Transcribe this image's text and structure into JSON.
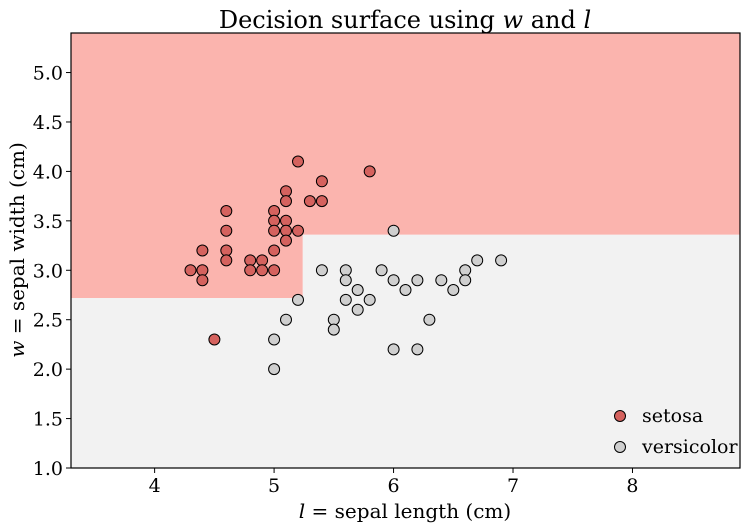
{
  "chart_data": {
    "type": "scatter",
    "title_prefix": "Decision surface using ",
    "title_var1": "w",
    "title_mid": " and ",
    "title_var2": "l",
    "xlabel_var": "l",
    "xlabel_rest": " = sepal length (cm)",
    "ylabel_var": "w",
    "ylabel_rest": " = sepal width (cm)",
    "xlim": [
      3.3,
      8.9
    ],
    "ylim": [
      1.0,
      5.4
    ],
    "xticks": [
      4,
      5,
      6,
      7,
      8
    ],
    "yticks": [
      1.0,
      1.5,
      2.0,
      2.5,
      3.0,
      3.5,
      4.0,
      4.5,
      5.0
    ],
    "xtick_labels": [
      "4",
      "5",
      "6",
      "7",
      "8"
    ],
    "ytick_labels": [
      "1.0",
      "1.5",
      "2.0",
      "2.5",
      "3.0",
      "3.5",
      "4.0",
      "4.5",
      "5.0"
    ],
    "grid": false,
    "legend_position": "bottom-right",
    "decision_regions": [
      {
        "class": "setosa",
        "color": "#fbb4ae",
        "polygon": [
          [
            3.3,
            5.4
          ],
          [
            8.9,
            5.4
          ],
          [
            8.9,
            3.36
          ],
          [
            5.24,
            3.36
          ],
          [
            5.24,
            2.72
          ],
          [
            3.3,
            2.72
          ]
        ]
      },
      {
        "class": "versicolor",
        "color": "#f2f2f2",
        "polygon": [
          [
            3.3,
            2.72
          ],
          [
            5.24,
            2.72
          ],
          [
            5.24,
            3.36
          ],
          [
            8.9,
            3.36
          ],
          [
            8.9,
            1.0
          ],
          [
            3.3,
            1.0
          ]
        ]
      }
    ],
    "series": [
      {
        "name": "setosa",
        "color": "#d5625e",
        "points": [
          [
            5.2,
            4.1
          ],
          [
            5.8,
            4.0
          ],
          [
            5.4,
            3.9
          ],
          [
            5.1,
            3.8
          ],
          [
            5.1,
            3.7
          ],
          [
            5.3,
            3.7
          ],
          [
            5.4,
            3.7
          ],
          [
            4.6,
            3.6
          ],
          [
            5.0,
            3.6
          ],
          [
            5.0,
            3.5
          ],
          [
            5.1,
            3.5
          ],
          [
            4.6,
            3.4
          ],
          [
            5.0,
            3.4
          ],
          [
            5.1,
            3.4
          ],
          [
            5.2,
            3.4
          ],
          [
            5.1,
            3.3
          ],
          [
            4.4,
            3.2
          ],
          [
            4.6,
            3.2
          ],
          [
            5.0,
            3.2
          ],
          [
            4.6,
            3.1
          ],
          [
            4.8,
            3.1
          ],
          [
            4.9,
            3.1
          ],
          [
            4.3,
            3.0
          ],
          [
            4.4,
            3.0
          ],
          [
            4.8,
            3.0
          ],
          [
            4.9,
            3.0
          ],
          [
            5.0,
            3.0
          ],
          [
            4.4,
            2.9
          ],
          [
            4.5,
            2.3
          ]
        ]
      },
      {
        "name": "versicolor",
        "color": "#cfcfcf",
        "points": [
          [
            6.0,
            3.4
          ],
          [
            5.4,
            3.0
          ],
          [
            5.6,
            3.0
          ],
          [
            5.9,
            3.0
          ],
          [
            6.6,
            3.0
          ],
          [
            6.7,
            3.1
          ],
          [
            6.9,
            3.1
          ],
          [
            5.6,
            2.9
          ],
          [
            6.0,
            2.9
          ],
          [
            6.2,
            2.9
          ],
          [
            6.4,
            2.9
          ],
          [
            6.6,
            2.9
          ],
          [
            5.7,
            2.8
          ],
          [
            6.1,
            2.8
          ],
          [
            6.5,
            2.8
          ],
          [
            5.2,
            2.7
          ],
          [
            5.6,
            2.7
          ],
          [
            5.8,
            2.7
          ],
          [
            5.7,
            2.6
          ],
          [
            5.1,
            2.5
          ],
          [
            5.5,
            2.5
          ],
          [
            6.3,
            2.5
          ],
          [
            5.5,
            2.4
          ],
          [
            5.0,
            2.3
          ],
          [
            6.0,
            2.2
          ],
          [
            6.2,
            2.2
          ],
          [
            5.0,
            2.0
          ]
        ]
      }
    ]
  }
}
